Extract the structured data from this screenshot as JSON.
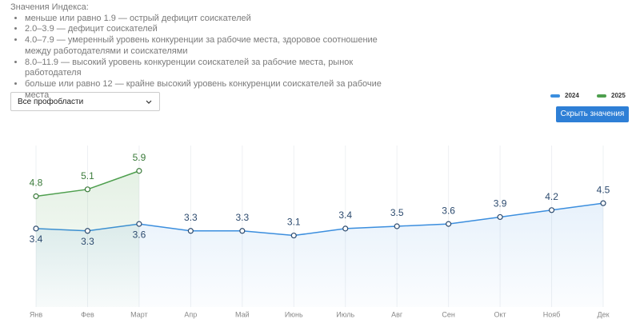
{
  "index_note": {
    "title": "Значения Индекса:",
    "items": [
      "меньше или равно 1.9 — острый дефицит соискателей",
      "2.0–3.9 — дефицит соискателей",
      "4.0–7.9 — умеренный уровень конкуренции за рабочие места, здоровое соотношение между работодателями и соискателями",
      "8.0–11.9 — высокий уровень конкуренции соискателей за рабочие места, рынок работодателя",
      "больше или равно 12 — крайне высокий уровень конкуренции соискателей за рабочие места"
    ]
  },
  "filter": {
    "selected": "Все профобласти"
  },
  "button": {
    "label": "Скрыть значения"
  },
  "chart_data": {
    "type": "line",
    "categories": [
      "Янв",
      "Фев",
      "Март",
      "Апр",
      "Май",
      "Июнь",
      "Июль",
      "Авг",
      "Сен",
      "Окт",
      "Нояб",
      "Дек"
    ],
    "series": [
      {
        "name": "2024",
        "color": "#3b8ede",
        "values": [
          3.4,
          3.3,
          3.6,
          3.3,
          3.3,
          3.1,
          3.4,
          3.5,
          3.6,
          3.9,
          4.2,
          4.5
        ]
      },
      {
        "name": "2025",
        "color": "#4e9f4e",
        "values": [
          4.8,
          5.1,
          5.9,
          null,
          null,
          null,
          null,
          null,
          null,
          null,
          null,
          null
        ]
      }
    ],
    "ylim": [
      0,
      7
    ],
    "grid": true,
    "legend": "top-right"
  }
}
